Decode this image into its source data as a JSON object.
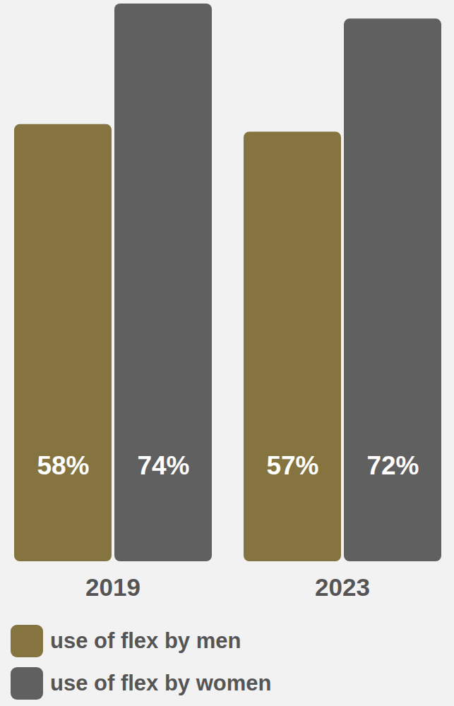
{
  "chart_data": {
    "type": "bar",
    "categories": [
      "2019",
      "2023"
    ],
    "series": [
      {
        "name": "use of flex by men",
        "color": "#857440",
        "values": [
          58,
          57
        ],
        "value_labels": [
          "58%",
          "57%"
        ]
      },
      {
        "name": "use of flex by women",
        "color": "#606060",
        "values": [
          74,
          72
        ],
        "value_labels": [
          "74%",
          "72%"
        ]
      }
    ],
    "ylim": [
      0,
      74
    ],
    "data_labels": true,
    "tick_labels": "x",
    "legend": "bottom"
  }
}
